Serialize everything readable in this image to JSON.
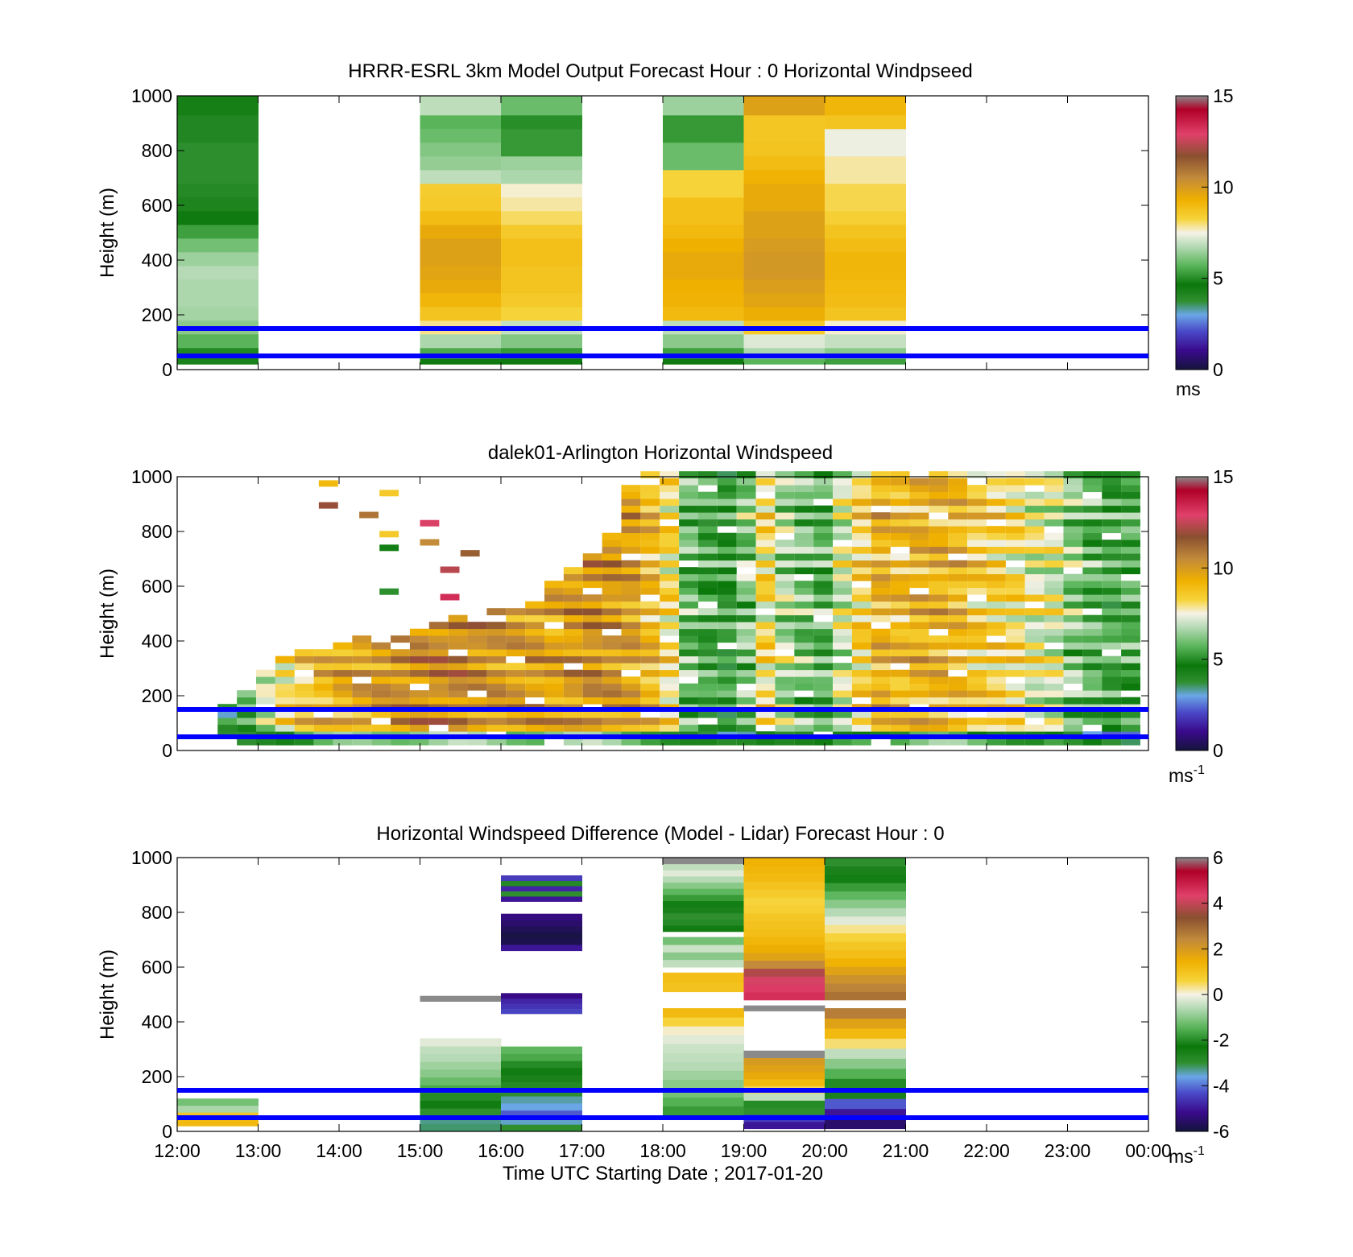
{
  "figure": {
    "xlabel": "Time UTC  Starting Date ; 2017-01-20",
    "x_ticks": [
      "12:00",
      "13:00",
      "14:00",
      "15:00",
      "16:00",
      "17:00",
      "18:00",
      "19:00",
      "20:00",
      "21:00",
      "22:00",
      "23:00",
      "00:00"
    ],
    "y_ticks": [
      "0",
      "200",
      "400",
      "600",
      "800",
      "1000"
    ],
    "reference_line_color": "#0000ff"
  },
  "chart_data": [
    {
      "type": "heatmap",
      "title": "HRRR-ESRL 3km Model Output   Forecast Hour : 0 Horizontal Windpseed",
      "ylabel": "Height (m)",
      "xlim": [
        "12:00",
        "00:00"
      ],
      "ylim": [
        0,
        1000
      ],
      "grid": false,
      "colorbar": {
        "ticks": [
          "0",
          "5",
          "10",
          "15"
        ],
        "range": [
          0,
          15
        ],
        "unit": "ms",
        "unit_sup": ""
      },
      "reference_lines_m": [
        150,
        50
      ],
      "columns": [
        {
          "hour": 12,
          "h": [
            0,
            40,
            80,
            130,
            180,
            230,
            280,
            330,
            380,
            430,
            480,
            530,
            580,
            630,
            680,
            730,
            780,
            830,
            880,
            930,
            980
          ],
          "v": [
            4.5,
            5.2,
            6.0,
            6.6,
            6.9,
            7.0,
            7.0,
            7.1,
            6.8,
            6.3,
            5.6,
            4.8,
            4.4,
            4.2,
            4.0,
            4.0,
            4.0,
            4.3,
            4.3,
            4.6,
            4.6
          ]
        },
        {
          "hour": 15,
          "h": [
            0,
            40,
            80,
            130,
            180,
            230,
            280,
            330,
            380,
            430,
            480,
            530,
            580,
            630,
            680,
            730,
            780,
            830,
            880,
            930,
            980
          ],
          "v": [
            4.8,
            5.8,
            7.0,
            8.3,
            9.2,
            9.6,
            10.0,
            10.2,
            10.3,
            10.3,
            10.0,
            9.4,
            9.0,
            8.9,
            7.2,
            6.7,
            6.5,
            6.2,
            6.0,
            7.2,
            7.2
          ]
        },
        {
          "hour": 16,
          "h": [
            0,
            40,
            80,
            130,
            180,
            230,
            280,
            330,
            380,
            430,
            480,
            530,
            580,
            630,
            680,
            730,
            780,
            830,
            880,
            930,
            980
          ],
          "v": [
            4.8,
            5.5,
            6.5,
            7.3,
            8.7,
            9.0,
            9.2,
            9.2,
            9.3,
            9.3,
            9.0,
            8.5,
            8.2,
            8.0,
            7.0,
            6.8,
            5.5,
            5.5,
            5.3,
            6.2,
            6.2
          ]
        },
        {
          "hour": 18,
          "h": [
            0,
            40,
            80,
            130,
            180,
            230,
            280,
            330,
            380,
            430,
            480,
            530,
            580,
            630,
            680,
            730,
            780,
            830,
            880,
            930,
            980
          ],
          "v": [
            4.8,
            5.6,
            6.6,
            7.2,
            9.5,
            9.7,
            9.8,
            10.0,
            10.0,
            9.8,
            9.5,
            9.3,
            9.3,
            8.7,
            8.7,
            6.2,
            6.2,
            5.5,
            5.5,
            6.8,
            6.8
          ]
        },
        {
          "hour": 19,
          "h": [
            0,
            40,
            80,
            130,
            180,
            230,
            280,
            330,
            380,
            430,
            480,
            530,
            580,
            630,
            680,
            730,
            780,
            830,
            880,
            930,
            980
          ],
          "v": [
            6.0,
            7.0,
            7.6,
            9.0,
            9.9,
            10.2,
            10.4,
            10.6,
            10.6,
            10.5,
            10.3,
            10.3,
            10.0,
            10.0,
            9.7,
            9.4,
            9.2,
            9.1,
            9.1,
            10.3,
            10.3
          ]
        },
        {
          "hour": 20,
          "h": [
            0,
            40,
            80,
            130,
            180,
            230,
            280,
            330,
            380,
            430,
            480,
            530,
            580,
            630,
            680,
            730,
            780,
            830,
            880,
            930,
            980
          ],
          "v": [
            5.6,
            6.6,
            7.3,
            8.0,
            9.2,
            9.4,
            9.5,
            9.6,
            9.6,
            9.4,
            9.2,
            8.8,
            8.6,
            8.6,
            8.2,
            8.2,
            7.8,
            7.8,
            9.2,
            9.6,
            9.6
          ]
        }
      ]
    },
    {
      "type": "heatmap",
      "title": "dalek01-Arlington  Horizontal Windspeed",
      "ylabel": "Height (m)",
      "xlim": [
        "12:00",
        "00:00"
      ],
      "ylim": [
        0,
        1000
      ],
      "grid": false,
      "colorbar": {
        "ticks": [
          "0",
          "5",
          "10",
          "15"
        ],
        "range": [
          0,
          15
        ],
        "unit": "ms",
        "unit_sup": "-1"
      },
      "reference_lines_m": [
        150,
        50
      ],
      "columns_per_hour": 4,
      "column_top_m": [
        160,
        210,
        290,
        340,
        370,
        350,
        380,
        400,
        390,
        420,
        440,
        460,
        480,
        470,
        500,
        520,
        540,
        600,
        660,
        700,
        780,
        950,
        1000,
        1000,
        1000,
        1000,
        1000,
        1000,
        1000,
        1000,
        1000,
        1000,
        1000,
        1000,
        1000,
        1000,
        1000,
        1000,
        1000,
        1000,
        1000,
        1000,
        1000,
        1000,
        1000,
        1000,
        1000,
        1000
      ],
      "column_mean_ms": [
        5.0,
        6.0,
        7.5,
        8.5,
        9.2,
        9.6,
        10.0,
        10.3,
        10.6,
        10.8,
        10.9,
        11.0,
        11.0,
        10.8,
        10.6,
        10.5,
        10.4,
        10.2,
        10.5,
        10.8,
        10.6,
        10.3,
        9.6,
        8.5,
        6.2,
        5.6,
        5.4,
        6.5,
        8.5,
        7.0,
        6.4,
        6.0,
        7.5,
        8.8,
        9.8,
        9.5,
        9.8,
        9.8,
        9.6,
        9.0,
        8.8,
        8.5,
        7.8,
        7.6,
        6.6,
        6.0,
        5.6,
        5.8
      ],
      "isolated_cells": [
        {
          "hour": 13.75,
          "height_m": 975,
          "value_ms": 9.5
        },
        {
          "hour": 13.75,
          "height_m": 895,
          "value_ms": 12.5
        },
        {
          "hour": 14.25,
          "height_m": 860,
          "value_ms": 11.5
        },
        {
          "hour": 14.5,
          "height_m": 940,
          "value_ms": 9.0
        },
        {
          "hour": 14.5,
          "height_m": 790,
          "value_ms": 9.0
        },
        {
          "hour": 14.5,
          "height_m": 740,
          "value_ms": 5.0
        },
        {
          "hour": 14.5,
          "height_m": 580,
          "value_ms": 4.0
        },
        {
          "hour": 15.0,
          "height_m": 830,
          "value_ms": 13.5
        },
        {
          "hour": 15.0,
          "height_m": 760,
          "value_ms": 11.0
        },
        {
          "hour": 15.25,
          "height_m": 660,
          "value_ms": 13.0
        },
        {
          "hour": 15.25,
          "height_m": 560,
          "value_ms": 14.0
        },
        {
          "hour": 15.5,
          "height_m": 720,
          "value_ms": 12.0
        }
      ]
    },
    {
      "type": "heatmap",
      "title": "Horizontal Windspeed Difference (Model - Lidar) Forecast Hour : 0",
      "ylabel": "Height (m)",
      "xlim": [
        "12:00",
        "00:00"
      ],
      "ylim": [
        0,
        1000
      ],
      "grid": false,
      "colorbar": {
        "ticks": [
          "-6",
          "-4",
          "-2",
          "0",
          "2",
          "4",
          "6"
        ],
        "range": [
          -6,
          6
        ],
        "unit": "ms",
        "unit_sup": "-1"
      },
      "reference_lines_m": [
        150,
        50
      ],
      "segments": [
        {
          "hour": 12,
          "bottom_m": 20,
          "top_m": 120,
          "values": [
            1.2,
            0.9,
            -0.7,
            -1.2
          ]
        },
        {
          "hour": 15,
          "bottom_m": 0,
          "top_m": 340,
          "values": [
            -3.2,
            -3.3,
            -3.0,
            -2.4,
            -2.0,
            -1.6,
            -1.3,
            -1.0,
            -0.8,
            -0.6,
            -0.5,
            -0.2
          ]
        },
        {
          "hour": 15,
          "bottom_m": 475,
          "top_m": 495,
          "values": [
            8.0
          ]
        },
        {
          "hour": 16,
          "bottom_m": 0,
          "top_m": 310,
          "values": [
            -3.0,
            -3.5,
            -4.2,
            -3.6,
            -3.4,
            -3.0,
            -2.8,
            -2.6,
            -2.4,
            -2.0,
            -1.6,
            -1.4
          ]
        },
        {
          "hour": 16,
          "bottom_m": 430,
          "top_m": 505,
          "values": [
            -4.4,
            -4.6,
            -4.8,
            -5.2
          ]
        },
        {
          "hour": 16,
          "bottom_m": 660,
          "top_m": 795,
          "values": [
            -5.0,
            -5.8,
            -5.9,
            -5.7,
            -5.5,
            -5.3
          ]
        },
        {
          "hour": 16,
          "bottom_m": 840,
          "top_m": 935,
          "values": [
            -5.0,
            -3.0,
            -4.8,
            -2.8,
            -4.5
          ]
        },
        {
          "hour": 18,
          "bottom_m": 60,
          "top_m": 450,
          "values": [
            -1.8,
            -1.5,
            -1.2,
            -1.0,
            -0.8,
            -0.6,
            -0.5,
            -0.4,
            -0.2,
            0.1,
            0.6,
            1.2
          ]
        },
        {
          "hour": 18,
          "bottom_m": 510,
          "top_m": 580,
          "values": [
            1.0,
            1.1
          ]
        },
        {
          "hour": 18,
          "bottom_m": 600,
          "top_m": 710,
          "values": [
            -0.5,
            -1.0,
            -0.4,
            -1.2
          ]
        },
        {
          "hour": 18,
          "bottom_m": 730,
          "top_m": 1000,
          "values": [
            -2.4,
            -2.8,
            -3.0,
            -2.6,
            -2.2,
            -1.8,
            -1.4,
            -1.0,
            -0.6,
            -0.2,
            -0.5,
            8.0
          ]
        },
        {
          "hour": 19,
          "bottom_m": 10,
          "top_m": 295,
          "values": [
            -5.0,
            -4.5,
            -3.0,
            -2.0,
            -0.5,
            0.5,
            1.2,
            1.6,
            1.8,
            2.0,
            8.0
          ]
        },
        {
          "hour": 19,
          "bottom_m": 440,
          "top_m": 460,
          "values": [
            8.0
          ]
        },
        {
          "hour": 19,
          "bottom_m": 480,
          "top_m": 1000,
          "values": [
            4.6,
            4.4,
            4.2,
            3.8,
            2.4,
            1.8,
            1.5,
            1.3,
            1.1,
            1.0,
            0.9,
            0.7,
            0.6,
            0.8,
            1.0,
            1.2,
            1.3,
            1.4
          ]
        },
        {
          "hour": 20,
          "bottom_m": 10,
          "top_m": 450,
          "values": [
            -5.5,
            -5.0,
            -4.2,
            -2.6,
            -2.0,
            -1.5,
            -1.0,
            -0.5,
            0.4,
            1.2,
            1.8,
            2.6
          ]
        },
        {
          "hour": 20,
          "bottom_m": 480,
          "top_m": 1000,
          "values": [
            2.8,
            2.5,
            2.2,
            1.8,
            1.4,
            1.1,
            0.9,
            0.6,
            0.3,
            -0.2,
            -0.6,
            -1.0,
            -1.4,
            -1.8,
            -2.2,
            -2.6,
            -3.0
          ]
        }
      ]
    }
  ]
}
